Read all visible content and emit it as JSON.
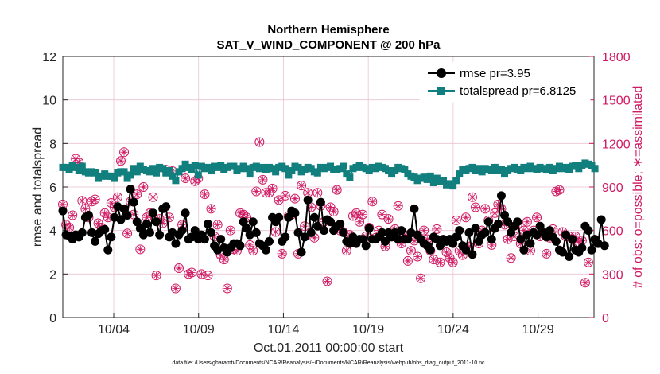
{
  "chart_data": {
    "type": "line",
    "title_line1": "Northern Hemisphere",
    "title_line2": "SAT_V_WIND_COMPONENT @ 200 hPa",
    "xlabel": "Oct.01,2011 00:00:00 start",
    "ylabel": "rmse and totalspread",
    "ylabel_right": "# of obs: o=possible; ∗=assimilated",
    "xlim": [
      1,
      32.3
    ],
    "ylim": [
      0,
      12
    ],
    "ylim_right": [
      0,
      1800
    ],
    "xtick_values": [
      4,
      9,
      14,
      19,
      24,
      29
    ],
    "xtick_labels": [
      "10/04",
      "10/09",
      "10/14",
      "10/19",
      "10/24",
      "10/29"
    ],
    "ytick_labels": [
      "0",
      "2",
      "4",
      "6",
      "8",
      "10",
      "12"
    ],
    "ytick_labels_right": [
      "0",
      "300",
      "600",
      "900",
      "1200",
      "1500",
      "1800"
    ],
    "colors": {
      "rmse": "#000000",
      "spread": "#127f7f",
      "obs": "#d01a63",
      "grid": "#e9c3d3",
      "axis": "#262626"
    },
    "legend": {
      "rmse_label": "rmse pr=3.95",
      "spread_label": "totalspread pr=6.8125"
    },
    "footnote": "data file: /Users/gharamti/Documents/NCAR/Reanalysis/~/Documents/NCAR/Reanalysis/webpub/obs_diag_output_2011-10.nc",
    "series": [
      {
        "name": "rmse",
        "values": [
          4.9,
          3.8,
          3.75,
          3.6,
          3.8,
          3.7,
          3.9,
          4.6,
          4.7,
          3.9,
          3.5,
          3.85,
          4.0,
          4.05,
          3.1,
          3.7,
          4.6,
          5.1,
          4.5,
          5.0,
          4.7,
          5.9,
          5.3,
          4.4,
          4.1,
          3.8,
          4.3,
          3.9,
          4.8,
          4.4,
          3.8,
          5.0,
          5.1,
          3.7,
          3.9,
          3.4,
          3.8,
          4.0,
          4.8,
          3.6,
          3.7,
          4.0,
          3.6,
          3.8,
          3.6,
          4.3,
          3.9,
          3.3,
          3.1,
          3.6,
          3.2,
          3.0,
          3.2,
          3.4,
          3.4,
          3.3,
          4.4,
          4.1,
          3.8,
          4.4,
          3.9,
          3.4,
          3.3,
          3.1,
          3.5,
          4.6,
          4.4,
          4.6,
          3.5,
          3.7,
          4.6,
          4.9,
          4.8,
          3.9,
          3.0,
          3.7,
          5.4,
          3.9,
          4.6,
          4.2,
          5.3,
          4.0,
          4.5,
          4.4,
          4.0,
          4.2,
          4.3,
          3.9,
          3.5,
          3.4,
          3.7,
          3.4,
          3.6,
          3.6,
          3.3,
          4.1,
          3.6,
          3.6,
          3.7,
          3.9,
          3.5,
          3.9,
          3.7,
          3.9,
          3.6,
          4.0,
          3.6,
          3.6,
          3.9,
          5.0,
          3.8,
          3.6,
          3.4,
          3.3,
          3.1,
          3.7,
          3.6,
          3.3,
          3.6,
          3.5,
          3.6,
          3.4,
          3.7,
          4.0,
          3.3,
          3.1,
          3.9,
          2.9,
          4.1,
          3.5,
          3.8,
          3.9,
          4.4,
          3.6,
          4.1,
          4.3,
          5.6,
          4.7,
          4.4,
          3.9,
          4.2,
          4.4,
          3.6,
          3.1,
          3.8,
          3.4,
          3.9,
          3.8,
          4.2,
          3.9,
          3.7,
          4.0,
          3.7,
          3.5,
          3.1,
          3.0,
          3.8,
          2.8,
          3.6,
          3.1,
          3.0,
          3.2,
          4.2,
          4.0,
          3.1,
          3.6,
          3.4,
          4.5,
          3.3
        ]
      },
      {
        "name": "totalspread",
        "values": [
          6.9,
          6.9,
          6.8,
          7.0,
          6.9,
          6.75,
          6.95,
          6.7,
          6.65,
          6.7,
          6.65,
          6.4,
          6.5,
          6.6,
          6.5,
          6.5,
          6.4,
          6.65,
          6.7,
          6.7,
          6.4,
          6.55,
          6.85,
          6.7,
          6.95,
          6.8,
          6.75,
          6.7,
          6.85,
          6.65,
          6.9,
          6.85,
          6.65,
          6.75,
          6.5,
          6.3,
          6.7,
          6.85,
          7.05,
          6.9,
          6.8,
          7.0,
          6.55,
          6.95,
          6.85,
          6.9,
          6.75,
          6.95,
          6.9,
          7.0,
          6.8,
          6.9,
          6.95,
          6.95,
          6.75,
          6.85,
          6.95,
          6.85,
          6.6,
          6.9,
          6.95,
          6.85,
          6.9,
          6.8,
          6.9,
          6.85,
          6.7,
          6.9,
          6.95,
          6.85,
          6.55,
          6.75,
          6.95,
          6.9,
          6.7,
          6.8,
          6.9,
          6.85,
          6.7,
          6.65,
          6.9,
          6.85,
          6.9,
          6.95,
          6.8,
          6.8,
          6.85,
          6.95,
          6.6,
          6.45,
          6.85,
          6.9,
          7.0,
          6.9,
          6.85,
          6.75,
          6.9,
          6.85,
          6.95,
          6.9,
          6.85,
          6.75,
          6.6,
          6.75,
          6.9,
          6.85,
          6.8,
          6.6,
          6.5,
          6.45,
          6.3,
          6.4,
          6.45,
          6.35,
          6.5,
          6.2,
          6.4,
          6.25,
          6.3,
          6.1,
          6.15,
          6.05,
          6.3,
          6.6,
          6.8,
          6.75,
          6.85,
          6.9,
          6.75,
          6.85,
          6.7,
          6.85,
          6.8,
          6.75,
          6.9,
          6.75,
          6.8,
          6.6,
          6.75,
          6.85,
          6.9,
          6.8,
          6.75,
          6.9,
          6.85,
          6.95,
          6.85,
          6.8,
          6.9,
          6.85,
          6.8,
          6.9,
          6.75,
          6.85,
          6.95,
          6.85,
          6.9,
          6.8,
          6.95,
          7.0,
          6.85,
          7.0,
          7.1,
          7.05,
          7.0,
          6.85
        ]
      },
      {
        "name": "num_obs",
        "values": [
          780,
          640,
          620,
          705,
          1095,
          1070,
          805,
          750,
          690,
          800,
          815,
          650,
          620,
          720,
          690,
          790,
          760,
          830,
          1080,
          1140,
          580,
          800,
          710,
          850,
          470,
          900,
          690,
          720,
          830,
          290,
          680,
          650,
          1020,
          690,
          1010,
          200,
          340,
          640,
          960,
          300,
          310,
          940,
          960,
          300,
          850,
          290,
          750,
          560,
          640,
          430,
          400,
          200,
          600,
          470,
          460,
          720,
          710,
          690,
          500,
          460,
          870,
          1210,
          950,
          860,
          860,
          890,
          590,
          810,
          440,
          840,
          700,
          710,
          820,
          440,
          910,
          630,
          860,
          760,
          550,
          860,
          770,
          660,
          250,
          760,
          730,
          880,
          600,
          590,
          460,
          570,
          700,
          720,
          660,
          710,
          560,
          620,
          800,
          550,
          600,
          710,
          490,
          680,
          560,
          610,
          770,
          510,
          570,
          390,
          460,
          530,
          420,
          270,
          600,
          540,
          460,
          400,
          610,
          380,
          530,
          450,
          410,
          380,
          670,
          460,
          430,
          690,
          490,
          830,
          760,
          510,
          600,
          750,
          670,
          500,
          720,
          780,
          750,
          640,
          540,
          410,
          560,
          640,
          510,
          600,
          660,
          460,
          600,
          690,
          560,
          580,
          440,
          550,
          610,
          870,
          880,
          590,
          560,
          560,
          540,
          560,
          520,
          530,
          240,
          380
        ]
      }
    ]
  }
}
